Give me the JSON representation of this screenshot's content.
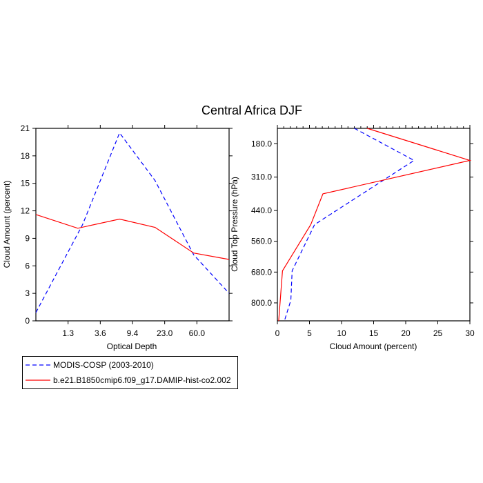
{
  "figure_title": "Central Africa DJF",
  "colors": {
    "modis": "#0000ff",
    "model": "#ff0000",
    "axis": "#000000"
  },
  "legend": {
    "entries": [
      {
        "label": "MODIS-COSP (2003-2010)",
        "style": "dashed",
        "color": "#0000ff"
      },
      {
        "label": "b.e21.B1850cmip6.f09_g17.DAMIP-hist-co2.002",
        "style": "solid",
        "color": "#ff0000"
      }
    ]
  },
  "chart_data": [
    {
      "type": "line",
      "title": "",
      "xlabel": "Optical Depth",
      "ylabel": "Cloud Amount (percent)",
      "x_tick_labels": [
        "1.3",
        "3.6",
        "9.4",
        "23.0",
        "60.0"
      ],
      "x_category_positions": [
        0,
        1,
        2,
        3,
        4,
        5,
        6
      ],
      "x_tick_positions": [
        1,
        2,
        3,
        4,
        5
      ],
      "xlim": [
        0,
        6
      ],
      "ylim": [
        0,
        21
      ],
      "y_ticks": [
        0,
        3,
        6,
        9,
        12,
        15,
        18,
        21
      ],
      "series": [
        {
          "name": "MODIS-COSP (2003-2010)",
          "style": "dashed",
          "values": [
            0.9,
            10.5,
            20.5,
            15.3,
            7.2,
            3.0
          ],
          "x": [
            0,
            1.45,
            2.6,
            3.7,
            4.9,
            6
          ]
        },
        {
          "name": "b.e21.B1850cmip6.f09_g17.DAMIP-hist-co2.002",
          "style": "solid",
          "values": [
            11.6,
            10.1,
            11.1,
            10.2,
            7.4,
            6.7
          ],
          "x": [
            0,
            1.3,
            2.6,
            3.7,
            4.9,
            6
          ]
        }
      ]
    },
    {
      "type": "line",
      "title": "",
      "xlabel": "Cloud Amount (percent)",
      "ylabel": "Cloud Top Pressure (hPa)",
      "x_ticks": [
        0,
        5,
        10,
        15,
        20,
        25,
        30
      ],
      "xlim": [
        0,
        30
      ],
      "y_tick_labels": [
        "180.0",
        "310.0",
        "440.0",
        "560.0",
        "680.0",
        "800.0"
      ],
      "y_tick_values": [
        180,
        310,
        440,
        560,
        680,
        800
      ],
      "ylim": [
        120,
        870
      ],
      "y_inverted": true,
      "series": [
        {
          "name": "MODIS-COSP (2003-2010)",
          "style": "dashed",
          "x": [
            12.0,
            21.3,
            5.8,
            2.3,
            2.1,
            1.1
          ],
          "y": [
            120,
            245,
            495,
            675,
            790,
            870
          ]
        },
        {
          "name": "b.e21.B1850cmip6.f09_g17.DAMIP-hist-co2.002",
          "style": "solid",
          "x": [
            14.0,
            30.0,
            7.1,
            5.2,
            0.8,
            0.2
          ],
          "y": [
            120,
            245,
            375,
            495,
            675,
            870
          ]
        }
      ]
    }
  ]
}
